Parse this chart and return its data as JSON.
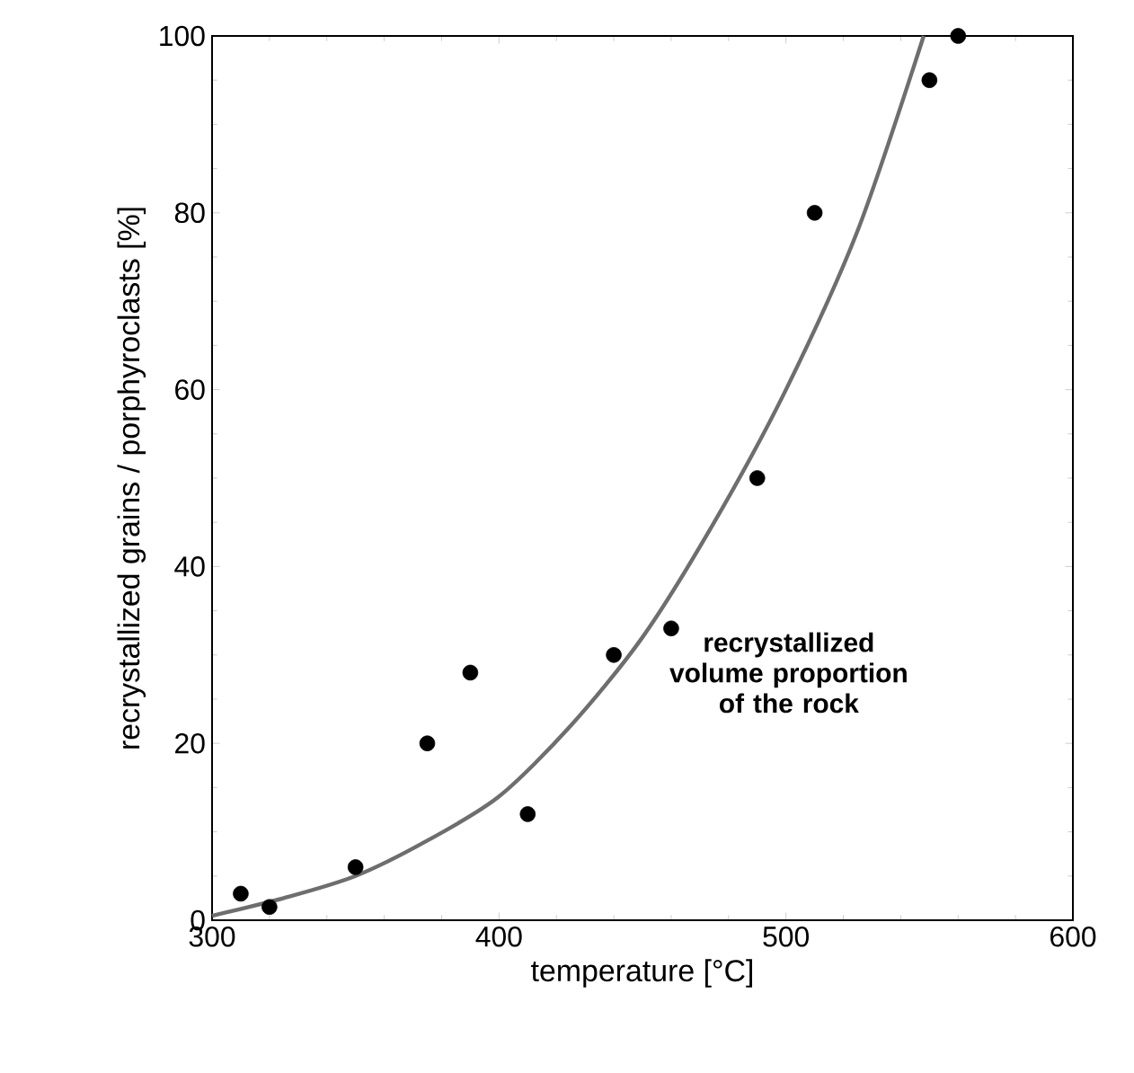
{
  "chart_data": {
    "type": "scatter",
    "xlabel": "temperature [°C]",
    "ylabel": "recrystallized grains / porphyroclasts [%]",
    "xlim": [
      300,
      600
    ],
    "ylim": [
      0,
      100
    ],
    "xticks": [
      300,
      400,
      500,
      600
    ],
    "yticks": [
      0,
      20,
      40,
      60,
      80,
      100
    ],
    "annotations": [
      "recrystallized volume proportion of the rock"
    ],
    "series": [
      {
        "color": "#000000",
        "marker": "circle",
        "x": [
          310,
          320,
          350,
          375,
          390,
          410,
          440,
          460,
          490,
          510,
          550,
          560
        ],
        "values": [
          3,
          1.5,
          6,
          20,
          28,
          12,
          30,
          33,
          50,
          80,
          95,
          100
        ]
      },
      {
        "type": "line",
        "marker": "none",
        "color": "#6e6e6e",
        "x": [
          300,
          325,
          350,
          375,
          400,
          425,
          450,
          475,
          500,
          525,
          548
        ],
        "values": [
          0.5,
          2.5,
          5,
          9,
          14,
          22,
          32,
          45,
          60,
          78,
          100
        ]
      }
    ]
  }
}
